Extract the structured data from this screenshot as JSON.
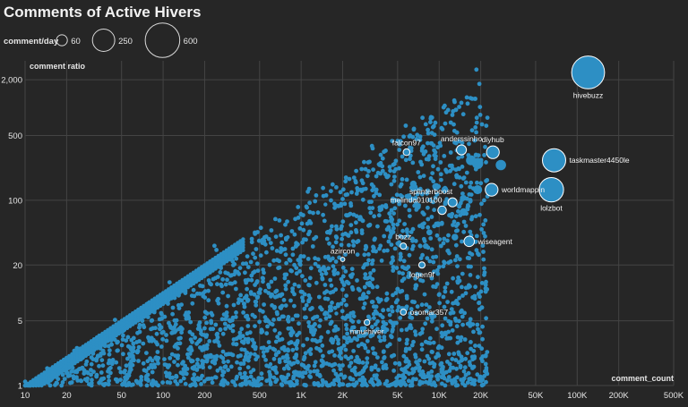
{
  "chart_data": {
    "type": "scatter",
    "title": "Comments of Active Hivers",
    "xlabel": "comment_count",
    "ylabel": "comment ratio",
    "x_scale": "log",
    "y_scale": "log",
    "xlim": [
      10,
      500000
    ],
    "ylim": [
      1,
      3200
    ],
    "x_ticks": [
      10,
      20,
      50,
      100,
      200,
      500,
      1000,
      2000,
      5000,
      10000,
      20000,
      50000,
      100000,
      200000,
      500000
    ],
    "x_tick_labels": [
      "10",
      "20",
      "50",
      "100",
      "200",
      "500",
      "1K",
      "2K",
      "5K",
      "10K",
      "20K",
      "50K",
      "100K",
      "200K",
      "500K"
    ],
    "y_ticks": [
      1,
      5,
      20,
      100,
      500,
      2000
    ],
    "y_tick_labels": [
      "1",
      "5",
      "20",
      "100",
      "500",
      "2,000"
    ],
    "grid": true,
    "point_color": "#2d8fc4",
    "size_legend": {
      "title": "comment/day",
      "values": [
        60,
        250,
        600
      ],
      "labels": [
        "60",
        "250",
        "600"
      ],
      "placement": "top-left"
    },
    "labeled_points": [
      {
        "name": "hivebuzz",
        "x": 120000,
        "y": 2400,
        "size": 600
      },
      {
        "name": "taskmaster4450le",
        "x": 68000,
        "y": 270,
        "size": 300
      },
      {
        "name": "lolzbot",
        "x": 65000,
        "y": 130,
        "size": 330
      },
      {
        "name": "worldmappin",
        "x": 24000,
        "y": 130,
        "size": 90
      },
      {
        "name": "diyhub",
        "x": 24500,
        "y": 330,
        "size": 90
      },
      {
        "name": "anderssinho",
        "x": 14500,
        "y": 350,
        "size": 55
      },
      {
        "name": "falcon97",
        "x": 5800,
        "y": 330,
        "size": 25
      },
      {
        "name": "splinterboost",
        "x": 12500,
        "y": 95,
        "size": 45
      },
      {
        "name": "melinda010100",
        "x": 10500,
        "y": 78,
        "size": 40
      },
      {
        "name": "bozz",
        "x": 5500,
        "y": 32,
        "size": 22
      },
      {
        "name": "wiseagent",
        "x": 16500,
        "y": 36,
        "size": 60
      },
      {
        "name": "logen9f",
        "x": 7500,
        "y": 20,
        "size": 22
      },
      {
        "name": "azircon",
        "x": 2000,
        "y": 23,
        "size": 10
      },
      {
        "name": "osomar357",
        "x": 5500,
        "y": 6.2,
        "size": 20
      },
      {
        "name": "mnurhiver",
        "x": 3000,
        "y": 4.8,
        "size": 18
      }
    ],
    "background_points": [
      {
        "x": 28000,
        "y": 240,
        "size": 60
      },
      {
        "x": 19000,
        "y": 250,
        "size": 70
      },
      {
        "x": 17000,
        "y": 270,
        "size": 55
      },
      {
        "x": 19000,
        "y": 130,
        "size": 45
      },
      {
        "x": 9500,
        "y": 140,
        "size": 30
      },
      {
        "x": 6500,
        "y": 150,
        "size": 25
      },
      {
        "x": 4200,
        "y": 180,
        "size": 15
      },
      {
        "x": 3500,
        "y": 130,
        "size": 12
      },
      {
        "x": 15000,
        "y": 75,
        "size": 30
      },
      {
        "x": 13000,
        "y": 40,
        "size": 25
      },
      {
        "x": 8500,
        "y": 45,
        "size": 20
      },
      {
        "x": 9800,
        "y": 55,
        "size": 20
      },
      {
        "x": 7000,
        "y": 85,
        "size": 20
      },
      {
        "x": 6000,
        "y": 110,
        "size": 20
      },
      {
        "x": 11000,
        "y": 130,
        "size": 25
      },
      {
        "x": 4500,
        "y": 60,
        "size": 14
      },
      {
        "x": 4800,
        "y": 100,
        "size": 15
      },
      {
        "x": 3800,
        "y": 80,
        "size": 12
      },
      {
        "x": 8000,
        "y": 32,
        "size": 18
      },
      {
        "x": 6800,
        "y": 12,
        "size": 14
      },
      {
        "x": 6000,
        "y": 15,
        "size": 14
      },
      {
        "x": 5000,
        "y": 11,
        "size": 12
      },
      {
        "x": 3300,
        "y": 8,
        "size": 10
      },
      {
        "x": 1800,
        "y": 6,
        "size": 8
      },
      {
        "x": 1300,
        "y": 3,
        "size": 6
      },
      {
        "x": 600,
        "y": 1.7,
        "size": 5
      },
      {
        "x": 3000,
        "y": 1,
        "size": 6
      },
      {
        "x": 400,
        "y": 2.2,
        "size": 5
      },
      {
        "x": 2300,
        "y": 45,
        "size": 10
      },
      {
        "x": 2800,
        "y": 60,
        "size": 10
      },
      {
        "x": 1500,
        "y": 90,
        "size": 8
      },
      {
        "x": 1000,
        "y": 70,
        "size": 7
      },
      {
        "x": 800,
        "y": 40,
        "size": 6
      }
    ],
    "density_cloud": {
      "note": "",
      "count": 2400,
      "base_ratio_at_10": 1,
      "slope": 1
    }
  }
}
